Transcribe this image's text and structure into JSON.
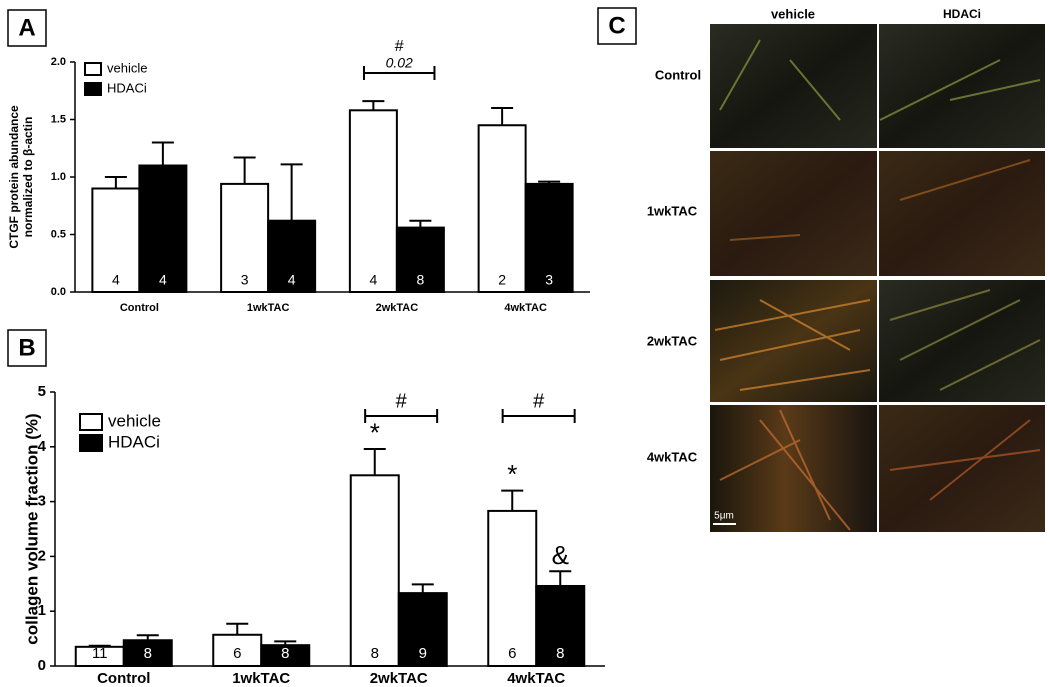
{
  "chart_data": [
    {
      "type": "bar",
      "panel_label": "A",
      "ylabel": [
        "CTGF protein abundance",
        "normalized to β-actin"
      ],
      "categories": [
        "Control",
        "1wkTAC",
        "2wkTAC",
        "4wkTAC"
      ],
      "series": [
        {
          "name": "vehicle",
          "color": "#ffffff",
          "values": [
            0.9,
            0.94,
            1.58,
            1.45
          ],
          "errors": [
            0.1,
            0.23,
            0.08,
            0.15
          ],
          "n": [
            4,
            3,
            4,
            2
          ],
          "markers": [
            null,
            null,
            null,
            null
          ]
        },
        {
          "name": "HDACi",
          "color": "#000000",
          "values": [
            1.1,
            0.62,
            0.56,
            0.94
          ],
          "errors": [
            0.2,
            0.49,
            0.06,
            0.02
          ],
          "n": [
            4,
            4,
            8,
            3
          ],
          "markers": [
            null,
            null,
            null,
            null
          ]
        }
      ],
      "brackets": [
        null,
        null,
        "#",
        null
      ],
      "bracket_notes": [
        null,
        null,
        "0.02",
        null
      ],
      "ylim": [
        0,
        2
      ],
      "yticks": [
        {
          "value": 0,
          "label": "0.0"
        },
        0.5,
        {
          "value": 1,
          "label": "1.0"
        },
        1.5,
        {
          "value": 2,
          "label": "2.0"
        }
      ],
      "grid": false,
      "legend": "top-left"
    },
    {
      "type": "bar",
      "panel_label": "B",
      "ylabel": [
        "collagen volume fraction (%)"
      ],
      "categories": [
        "Control",
        "1wkTAC",
        "2wkTAC",
        "4wkTAC"
      ],
      "series": [
        {
          "name": "vehicle",
          "color": "#ffffff",
          "values": [
            0.35,
            0.57,
            3.48,
            2.83
          ],
          "errors": [
            0.02,
            0.2,
            0.48,
            0.37
          ],
          "n": [
            11,
            6,
            8,
            6
          ],
          "markers": [
            null,
            null,
            "*",
            "*"
          ]
        },
        {
          "name": "HDACi",
          "color": "#000000",
          "values": [
            0.47,
            0.38,
            1.33,
            1.46
          ],
          "errors": [
            0.09,
            0.07,
            0.16,
            0.27
          ],
          "n": [
            8,
            8,
            9,
            8
          ],
          "markers": [
            null,
            null,
            null,
            "&"
          ]
        }
      ],
      "brackets": [
        null,
        null,
        "#",
        "#"
      ],
      "bracket_notes": [
        null,
        null,
        null,
        null
      ],
      "ylim": [
        0,
        5
      ],
      "yticks": [
        0,
        1,
        2,
        3,
        4,
        5
      ],
      "grid": false,
      "legend": "top-left"
    }
  ],
  "panel_c": {
    "label": "C",
    "columns": [
      "vehicle",
      "HDACi"
    ],
    "rows": [
      "Control",
      "1wkTAC",
      "2wkTAC",
      "4wkTAC"
    ],
    "scale_bar": "5μm"
  }
}
